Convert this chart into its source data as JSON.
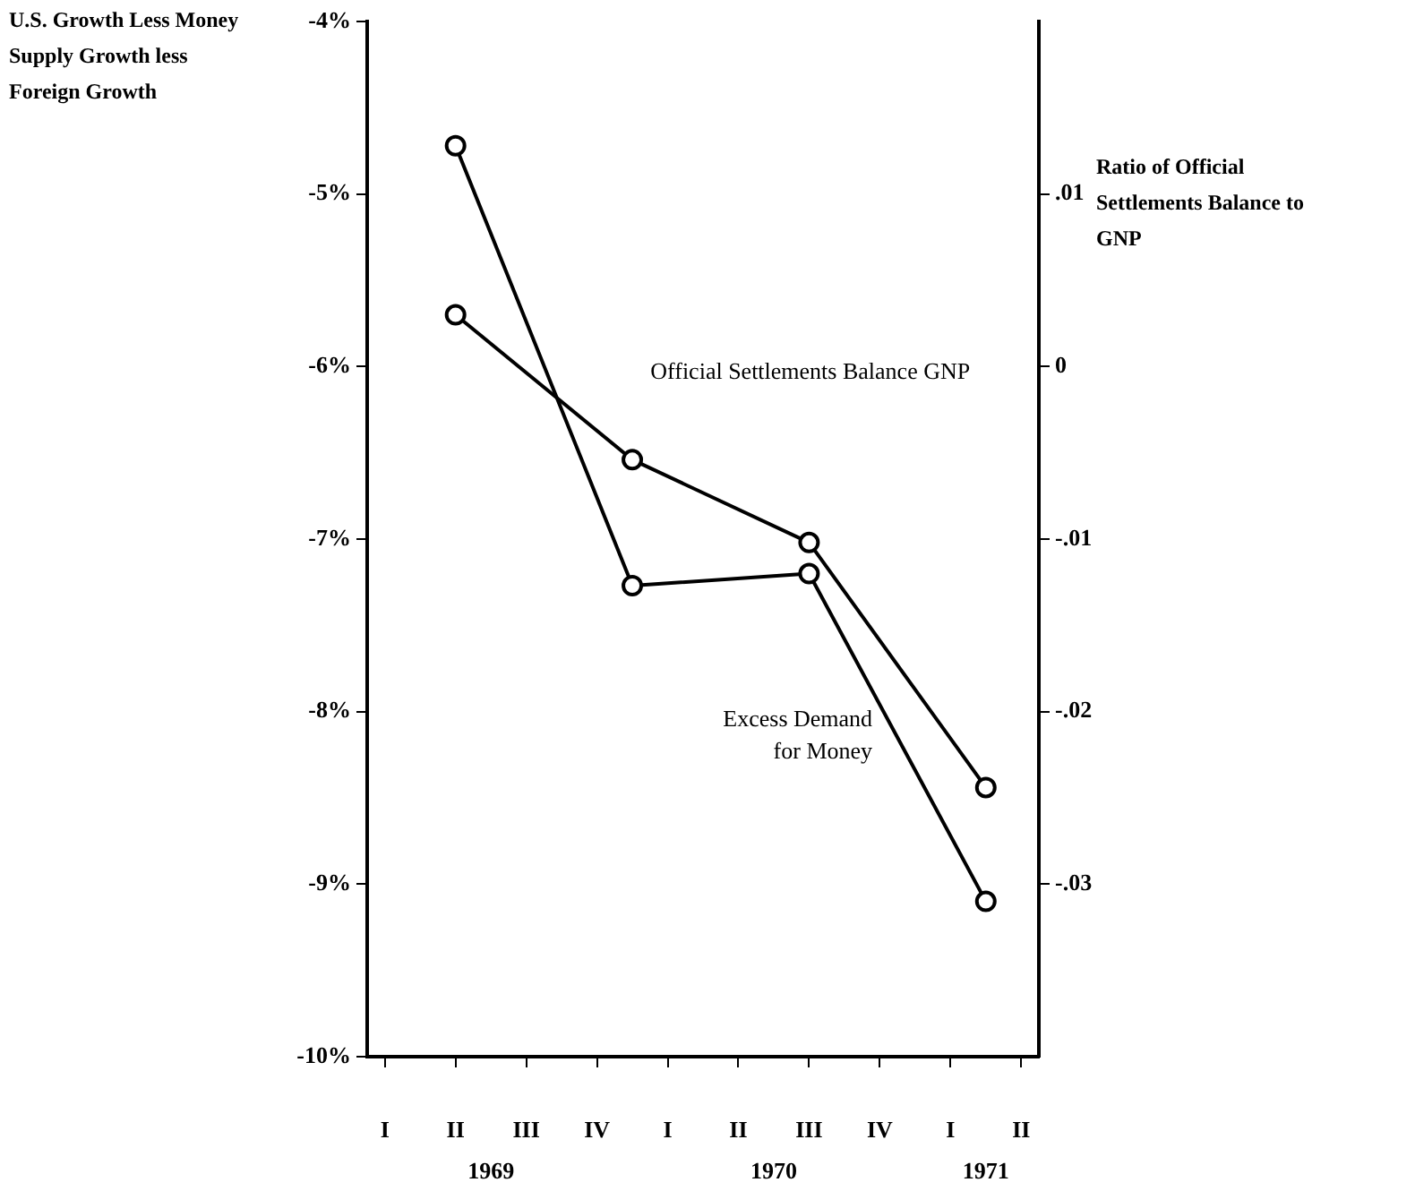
{
  "chart_data": {
    "type": "line",
    "ylabel": "U.S. Growth Less Money Supply Growth less Foreign Growth",
    "y2label": "Ratio of Official Settlements Balance to GNP",
    "categories": [
      "I",
      null,
      "II",
      null,
      "III",
      null,
      "IV",
      null,
      "I",
      null,
      "II",
      null,
      "III",
      null,
      "IV",
      null,
      "I",
      null,
      "II"
    ],
    "ylim": [
      -10,
      -4
    ],
    "yticks": [
      {
        "value": -10,
        "label": "-10%"
      },
      {
        "value": -9,
        "label": "-9%"
      },
      {
        "value": -8,
        "label": "-8%"
      },
      {
        "value": -7,
        "label": "-7%"
      },
      {
        "value": -6,
        "label": "-6%"
      },
      {
        "value": -5,
        "label": "-5%"
      },
      {
        "value": -4,
        "label": "-4%"
      }
    ],
    "y2lim": [
      -0.04,
      0.02
    ],
    "y2ticks": [
      {
        "value": -0.03,
        "label": "-.03"
      },
      {
        "value": -0.02,
        "label": "-.02"
      },
      {
        "value": -0.01,
        "label": "-.01"
      },
      {
        "value": 0,
        "label": "0"
      },
      {
        "value": 0.01,
        "label": ".01"
      }
    ],
    "series": [
      {
        "name": "Excess Demand for Money",
        "color": "#000000",
        "values": [
          null,
          null,
          -4.72,
          null,
          null,
          null,
          null,
          -7.27,
          null,
          null,
          null,
          null,
          -7.2,
          null,
          null,
          null,
          null,
          -9.1,
          null
        ]
      },
      {
        "name": "Official Settlements Balance GNP",
        "color": "#000000",
        "axis": "y2",
        "values": [
          null,
          null,
          0.003,
          null,
          null,
          null,
          null,
          -0.0054,
          null,
          null,
          null,
          null,
          -0.0102,
          null,
          null,
          null,
          null,
          -0.0244,
          null
        ]
      }
    ],
    "annotations": [
      "1969",
      "1970",
      "1971"
    ],
    "grid": false,
    "legend": false,
    "marker": "circle",
    "line_style": "solid"
  }
}
